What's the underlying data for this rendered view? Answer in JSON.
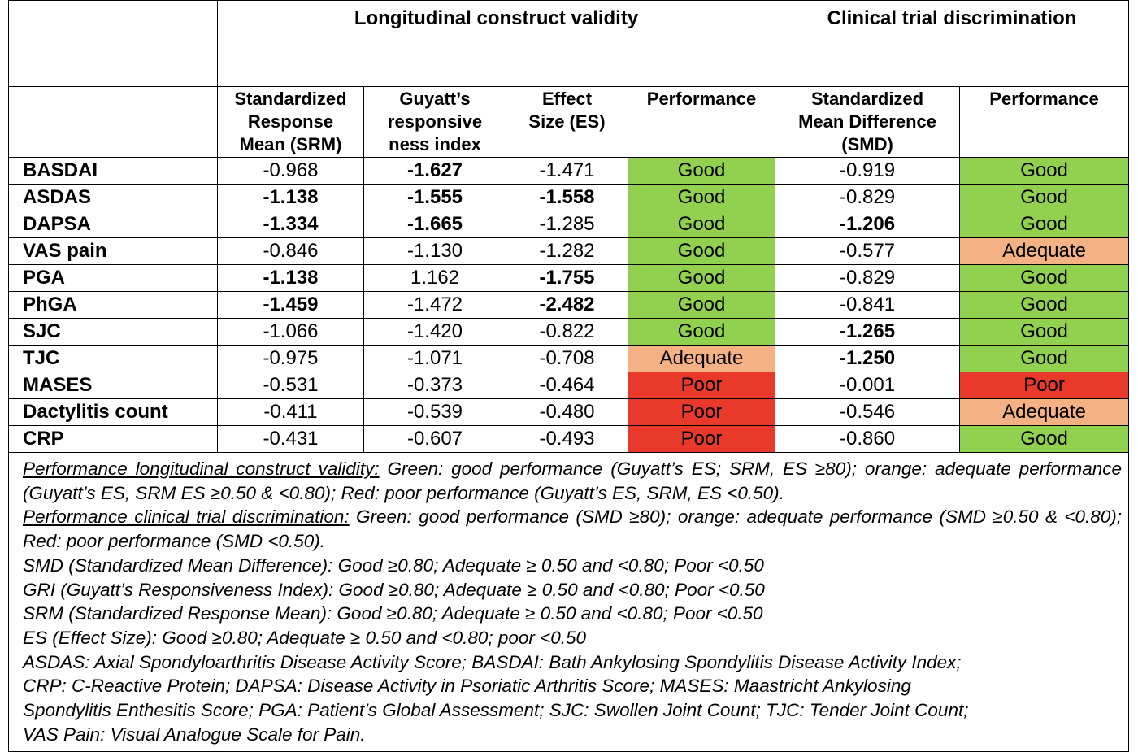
{
  "header": {
    "group_longitudinal": "Longitudinal construct validity",
    "group_clinical": "Clinical trial discrimination",
    "columns": [
      [
        "Standardized",
        "Response",
        "Mean (SRM)"
      ],
      [
        "Guyatt’s",
        "responsive",
        "ness index"
      ],
      [
        "Effect",
        "Size (ES)"
      ],
      [
        "Performance"
      ],
      [
        "Standardized",
        "Mean Difference",
        "(SMD)"
      ],
      [
        "Performance"
      ]
    ]
  },
  "rows": [
    {
      "label": "BASDAI",
      "srm": "-0.968",
      "gri": "-1.627",
      "es": "-1.471",
      "perf_long": "Good",
      "smd": "-0.919",
      "perf_clin": "Good",
      "bold": [
        "gri"
      ]
    },
    {
      "label": "ASDAS",
      "srm": "-1.138",
      "gri": "-1.555",
      "es": "-1.558",
      "perf_long": "Good",
      "smd": "-0.829",
      "perf_clin": "Good",
      "bold": [
        "srm",
        "gri",
        "es"
      ]
    },
    {
      "label": "DAPSA",
      "srm": "-1.334",
      "gri": "-1.665",
      "es": "-1.285",
      "perf_long": "Good",
      "smd": "-1.206",
      "perf_clin": "Good",
      "bold": [
        "srm",
        "gri",
        "smd"
      ]
    },
    {
      "label": "VAS pain",
      "srm": "-0.846",
      "gri": "-1.130",
      "es": "-1.282",
      "perf_long": "Good",
      "smd": "-0.577",
      "perf_clin": "Adequate",
      "bold": []
    },
    {
      "label": "PGA",
      "srm": "-1.138",
      "gri": "1.162",
      "es": "-1.755",
      "perf_long": "Good",
      "smd": "-0.829",
      "perf_clin": "Good",
      "bold": [
        "srm",
        "es"
      ]
    },
    {
      "label": "PhGA",
      "srm": "-1.459",
      "gri": "-1.472",
      "es": "-2.482",
      "perf_long": "Good",
      "smd": "-0.841",
      "perf_clin": "Good",
      "bold": [
        "srm",
        "es"
      ]
    },
    {
      "label": "SJC",
      "srm": "-1.066",
      "gri": "-1.420",
      "es": "-0.822",
      "perf_long": "Good",
      "smd": "-1.265",
      "perf_clin": "Good",
      "bold": [
        "smd"
      ]
    },
    {
      "label": "TJC",
      "srm": "-0.975",
      "gri": "-1.071",
      "es": "-0.708",
      "perf_long": "Adequate",
      "smd": "-1.250",
      "perf_clin": "Good",
      "bold": [
        "smd"
      ]
    },
    {
      "label": "MASES",
      "srm": "-0.531",
      "gri": "-0.373",
      "es": "-0.464",
      "perf_long": "Poor",
      "smd": "-0.001",
      "perf_clin": "Poor",
      "bold": []
    },
    {
      "label": "Dactylitis count",
      "srm": "-0.411",
      "gri": "-0.539",
      "es": "-0.480",
      "perf_long": "Poor",
      "smd": "-0.546",
      "perf_clin": "Adequate",
      "bold": []
    },
    {
      "label": "CRP",
      "srm": "-0.431",
      "gri": "-0.607",
      "es": "-0.493",
      "perf_long": "Poor",
      "smd": "-0.860",
      "perf_clin": "Good",
      "bold": []
    }
  ],
  "footnote": {
    "perf_long_title": "Performance longitudinal construct validity:",
    "perf_long_text": " Green: good performance (Guyatt’s ES; SRM, ES ≥80); orange: adequate performance (Guyatt’s ES, SRM ES ≥0.50 & <0.80); Red: poor performance (Guyatt’s ES, SRM, ES <0.50).",
    "perf_clin_title": "Performance clinical trial discrimination:",
    "perf_clin_text": " Green: good performance (SMD ≥80); orange: adequate performance (SMD ≥0.50 & <0.80); Red: poor performance (SMD <0.50).",
    "smd_line": "SMD (Standardized Mean Difference): Good ≥0.80; Adequate ≥ 0.50 and <0.80; Poor <0.50",
    "gri_line": "GRI (Guyatt’s Responsiveness Index): Good ≥0.80; Adequate ≥ 0.50 and <0.80; Poor <0.50",
    "srm_line": "SRM (Standardized Response Mean): Good ≥0.80; Adequate ≥ 0.50 and <0.80; Poor <0.50",
    "es_line": "ES (Effect Size): Good ≥0.80; Adequate ≥ 0.50 and <0.80; poor <0.50",
    "abbreviations": [
      "ASDAS: Axial Spondyloarthritis Disease Activity Score; BASDAI: Bath Ankylosing Spondylitis Disease Activity Index;",
      "CRP: C-Reactive Protein; DAPSA: Disease Activity in Psoriatic Arthritis Score; MASES: Maastricht Ankylosing",
      "Spondylitis Enthesitis Score; PGA: Patient’s Global Assessment; SJC: Swollen Joint Count; TJC: Tender Joint Count;",
      "VAS Pain: Visual Analogue Scale for Pain."
    ]
  },
  "colors": {
    "good": "#92d050",
    "adequate": "#f4b183",
    "poor": "#e8392a"
  }
}
